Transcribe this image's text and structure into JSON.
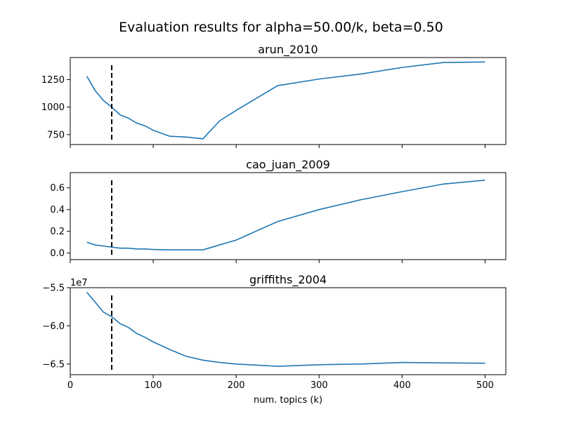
{
  "figure": {
    "title": "Evaluation results for alpha=50.00/k, beta=0.50",
    "xlabel": "num. topics (k)"
  },
  "colors": {
    "line": "#1f77b4",
    "marker": "#000000"
  },
  "chart_data": [
    {
      "type": "line",
      "title": "arun_2010",
      "xlim": [
        0,
        525
      ],
      "ylim": [
        660,
        1450
      ],
      "xticks": [
        0,
        100,
        200,
        300,
        400,
        500
      ],
      "yticks": [
        750,
        1000,
        1250
      ],
      "show_xticklabels": false,
      "offset_label": "",
      "vline_x": 50,
      "x": [
        20,
        30,
        40,
        50,
        60,
        70,
        80,
        90,
        100,
        120,
        140,
        160,
        180,
        200,
        250,
        300,
        350,
        400,
        450,
        500
      ],
      "y": [
        1280,
        1150,
        1060,
        1000,
        930,
        900,
        855,
        830,
        790,
        735,
        728,
        712,
        875,
        970,
        1195,
        1255,
        1300,
        1360,
        1405,
        1410
      ]
    },
    {
      "type": "line",
      "title": "cao_juan_2009",
      "xlim": [
        0,
        525
      ],
      "ylim": [
        -0.06,
        0.74
      ],
      "xticks": [
        0,
        100,
        200,
        300,
        400,
        500
      ],
      "yticks": [
        0.0,
        0.2,
        0.4,
        0.6
      ],
      "ytick_labels": [
        "0.0",
        "0.2",
        "0.4",
        "0.6"
      ],
      "show_xticklabels": false,
      "offset_label": "",
      "vline_x": 50,
      "x": [
        20,
        30,
        40,
        50,
        60,
        70,
        80,
        90,
        100,
        120,
        140,
        160,
        180,
        200,
        250,
        300,
        350,
        400,
        450,
        500
      ],
      "y": [
        0.1,
        0.075,
        0.065,
        0.055,
        0.045,
        0.045,
        0.038,
        0.038,
        0.033,
        0.03,
        0.03,
        0.03,
        0.075,
        0.12,
        0.29,
        0.4,
        0.49,
        0.565,
        0.635,
        0.67
      ]
    },
    {
      "type": "line",
      "title": "griffiths_2004",
      "xlim": [
        0,
        525
      ],
      "ylim": [
        -6.64,
        -5.5
      ],
      "xticks": [
        0,
        100,
        200,
        300,
        400,
        500
      ],
      "xtick_labels": [
        "0",
        "100",
        "200",
        "300",
        "400",
        "500"
      ],
      "yticks": [
        -5.5,
        -6.0,
        -6.5
      ],
      "ytick_labels": [
        "−5.5",
        "−6.0",
        "−6.5"
      ],
      "show_xticklabels": true,
      "offset_label": "1e7",
      "vline_x": 50,
      "x": [
        20,
        30,
        40,
        50,
        60,
        70,
        80,
        90,
        100,
        120,
        140,
        160,
        180,
        200,
        250,
        300,
        350,
        400,
        450,
        500
      ],
      "y": [
        -5.56,
        -5.69,
        -5.82,
        -5.88,
        -5.97,
        -6.02,
        -6.1,
        -6.15,
        -6.21,
        -6.31,
        -6.4,
        -6.45,
        -6.48,
        -6.5,
        -6.53,
        -6.51,
        -6.5,
        -6.48,
        -6.485,
        -6.49
      ]
    }
  ]
}
